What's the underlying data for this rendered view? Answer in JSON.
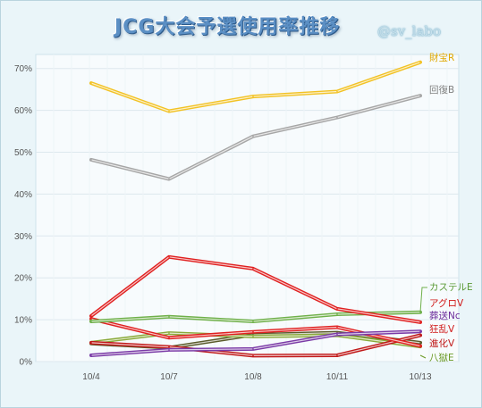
{
  "title": "JCG大会予選使用率推移",
  "handle": "@sv_labo",
  "chart_data": {
    "type": "line",
    "title": "JCG大会予選使用率推移",
    "xlabel": "",
    "ylabel": "",
    "categories": [
      "10/4",
      "10/7",
      "10/8",
      "10/11",
      "10/13"
    ],
    "ylim": [
      0,
      72
    ],
    "yticks": [
      "0%",
      "10%",
      "20%",
      "30%",
      "40%",
      "50%",
      "60%",
      "70%"
    ],
    "grid": true,
    "legend": "inline-right",
    "series": [
      {
        "name": "財宝R",
        "color": "#f2c224",
        "values": [
          66.5,
          59.8,
          63.3,
          64.5,
          71.5
        ]
      },
      {
        "name": "回復B",
        "color": "#a6a6a6",
        "values": [
          48.2,
          43.6,
          53.8,
          58.3,
          63.5
        ]
      },
      {
        "name": "カステルE",
        "color": "#6fb04a",
        "values": [
          9.6,
          10.7,
          9.6,
          11.3,
          11.8
        ]
      },
      {
        "name": "アグロV",
        "color": "#e02020",
        "values": [
          10.9,
          25.0,
          22.2,
          12.6,
          9.4
        ]
      },
      {
        "name": "葬送Nc",
        "color": "#7a3aa6",
        "values": [
          1.5,
          2.8,
          3.0,
          6.5,
          7.2
        ]
      },
      {
        "name": "狂乱V",
        "color": "#e02020",
        "values": [
          10.2,
          5.7,
          7.1,
          8.2,
          3.7
        ]
      },
      {
        "name": "進化V",
        "color": "#c01818",
        "values": [
          4.5,
          3.5,
          1.4,
          1.5,
          6.3
        ]
      },
      {
        "name": "八獄E",
        "color": "#8aaa3a",
        "values": [
          4.5,
          6.8,
          6.0,
          6.3,
          3.6
        ]
      },
      {
        "name": "",
        "color": "#5a5a2a",
        "values": [
          4.3,
          3.3,
          6.4,
          6.9,
          4.5
        ]
      }
    ]
  }
}
